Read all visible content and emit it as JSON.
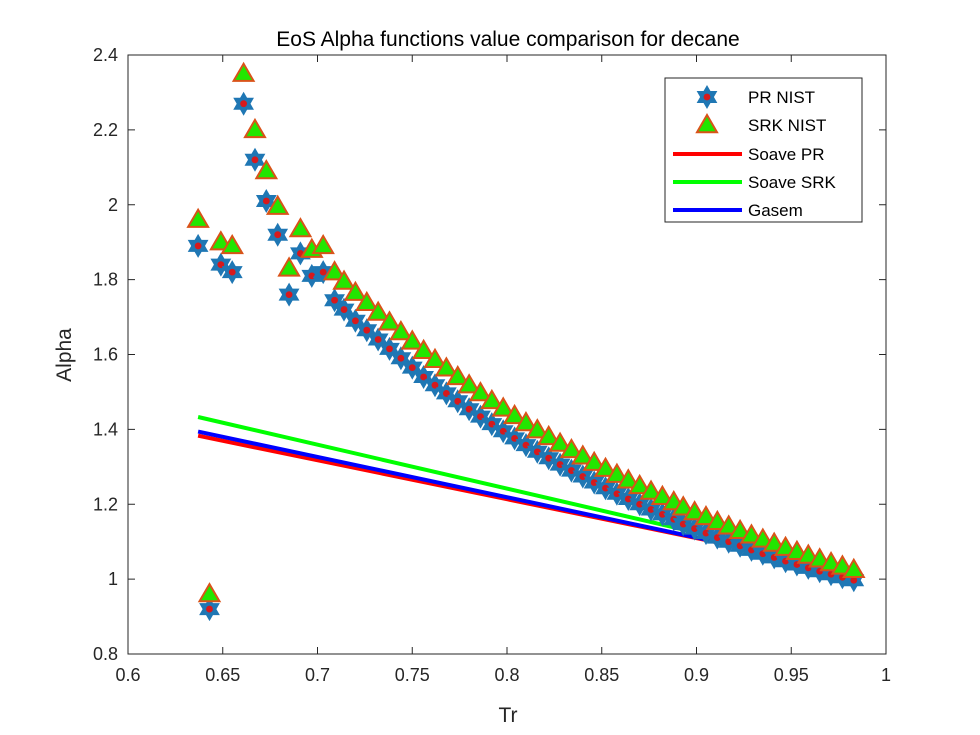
{
  "chart_data": {
    "type": "scatter",
    "title": "EoS Alpha functions value comparison for decane",
    "xlabel": "Tr",
    "ylabel": "Alpha",
    "xlim": [
      0.6,
      1.0
    ],
    "ylim": [
      0.8,
      2.4
    ],
    "xticks": [
      0.6,
      0.65,
      0.7,
      0.75,
      0.8,
      0.85,
      0.9,
      0.95,
      1.0
    ],
    "xtick_labels": [
      "0.6",
      "0.65",
      "0.7",
      "0.75",
      "0.8",
      "0.85",
      "0.9",
      "0.95",
      "1"
    ],
    "yticks": [
      0.8,
      1.0,
      1.2,
      1.4,
      1.6,
      1.8,
      2.0,
      2.2,
      2.4
    ],
    "ytick_labels": [
      "0.8",
      "1",
      "1.2",
      "1.4",
      "1.6",
      "1.8",
      "2",
      "2.2",
      "2.4"
    ],
    "grid": false,
    "legend_position": "top-right",
    "series": [
      {
        "name": "PR NIST",
        "kind": "marker",
        "marker": "hexagram",
        "fill": "#d7191c",
        "edge": "#1f77b4",
        "x": [
          0.637,
          0.643,
          0.649,
          0.655,
          0.661,
          0.667,
          0.673,
          0.679,
          0.685,
          0.691,
          0.697,
          0.703,
          0.709,
          0.714,
          0.72,
          0.726,
          0.732,
          0.738,
          0.744,
          0.75,
          0.756,
          0.762,
          0.768,
          0.774,
          0.78,
          0.786,
          0.792,
          0.798,
          0.804,
          0.81,
          0.816,
          0.822,
          0.828,
          0.834,
          0.84,
          0.846,
          0.852,
          0.858,
          0.864,
          0.87,
          0.876,
          0.882,
          0.888,
          0.893,
          0.899,
          0.905,
          0.911,
          0.917,
          0.923,
          0.929,
          0.935,
          0.941,
          0.947,
          0.953,
          0.959,
          0.965,
          0.971,
          0.977,
          0.983
        ],
        "y": [
          1.89,
          0.92,
          1.84,
          1.82,
          2.27,
          2.12,
          2.01,
          1.92,
          1.76,
          1.87,
          1.81,
          1.82,
          1.745,
          1.72,
          1.69,
          1.665,
          1.64,
          1.615,
          1.59,
          1.565,
          1.54,
          1.518,
          1.496,
          1.475,
          1.454,
          1.434,
          1.414,
          1.395,
          1.376,
          1.358,
          1.34,
          1.323,
          1.306,
          1.29,
          1.274,
          1.258,
          1.243,
          1.228,
          1.214,
          1.2,
          1.186,
          1.173,
          1.16,
          1.147,
          1.135,
          1.123,
          1.111,
          1.1,
          1.089,
          1.078,
          1.068,
          1.058,
          1.048,
          1.039,
          1.03,
          1.021,
          1.013,
          1.005,
          0.997
        ]
      },
      {
        "name": "SRK NIST",
        "kind": "marker",
        "marker": "triangle",
        "fill": "#22e600",
        "edge": "#d95319",
        "x": [
          0.637,
          0.643,
          0.649,
          0.655,
          0.661,
          0.667,
          0.673,
          0.679,
          0.685,
          0.691,
          0.697,
          0.703,
          0.709,
          0.714,
          0.72,
          0.726,
          0.732,
          0.738,
          0.744,
          0.75,
          0.756,
          0.762,
          0.768,
          0.774,
          0.78,
          0.786,
          0.792,
          0.798,
          0.804,
          0.81,
          0.816,
          0.822,
          0.828,
          0.834,
          0.84,
          0.846,
          0.852,
          0.858,
          0.864,
          0.87,
          0.876,
          0.882,
          0.888,
          0.893,
          0.899,
          0.905,
          0.911,
          0.917,
          0.923,
          0.929,
          0.935,
          0.941,
          0.947,
          0.953,
          0.959,
          0.965,
          0.971,
          0.977,
          0.983
        ],
        "y": [
          1.96,
          0.96,
          1.9,
          1.89,
          2.35,
          2.2,
          2.09,
          1.995,
          1.83,
          1.935,
          1.88,
          1.89,
          1.82,
          1.795,
          1.765,
          1.738,
          1.712,
          1.686,
          1.66,
          1.635,
          1.61,
          1.586,
          1.563,
          1.54,
          1.518,
          1.497,
          1.476,
          1.456,
          1.436,
          1.417,
          1.398,
          1.38,
          1.362,
          1.345,
          1.328,
          1.311,
          1.295,
          1.279,
          1.264,
          1.249,
          1.234,
          1.22,
          1.206,
          1.192,
          1.179,
          1.166,
          1.153,
          1.141,
          1.129,
          1.117,
          1.106,
          1.095,
          1.084,
          1.073,
          1.063,
          1.053,
          1.043,
          1.034,
          1.025
        ]
      },
      {
        "name": "Soave PR",
        "kind": "line",
        "color": "#ff0000",
        "x": [
          0.637,
          0.983
        ],
        "y": [
          1.383,
          1.023
        ]
      },
      {
        "name": "Soave SRK",
        "kind": "line",
        "color": "#00ff00",
        "x": [
          0.637,
          0.983
        ],
        "y": [
          1.433,
          1.027
        ]
      },
      {
        "name": "Gasem",
        "kind": "line",
        "color": "#0000ff",
        "x": [
          0.637,
          0.983
        ],
        "y": [
          1.394,
          1.022
        ]
      }
    ]
  }
}
